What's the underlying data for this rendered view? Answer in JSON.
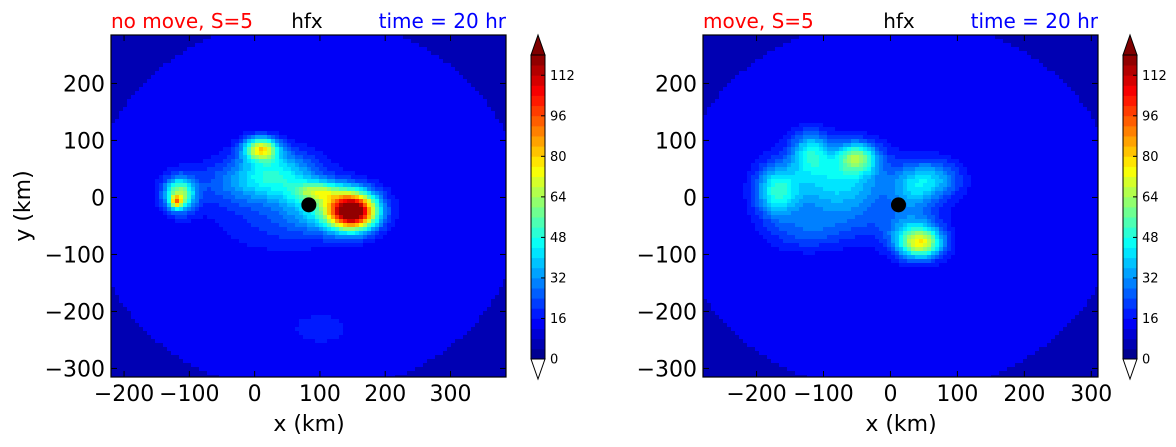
{
  "chart_data": [
    {
      "type": "heatmap",
      "variable": "hfx",
      "title_left": "no move, S=5",
      "title_center": "hfx",
      "title_right": "time = 20 hr",
      "title_left_color": "#ff0000",
      "title_center_color": "#000000",
      "title_right_color": "#0000ff",
      "xlabel": "x (km)",
      "ylabel": "y (km)",
      "xlim": [
        -220,
        385
      ],
      "ylim": [
        -315,
        285
      ],
      "xticks": [
        -200,
        -100,
        0,
        100,
        200,
        300
      ],
      "xtick_labels": [
        "−200",
        "−100",
        "0",
        "100",
        "200",
        "300"
      ],
      "yticks": [
        -300,
        -200,
        -100,
        0,
        100,
        200
      ],
      "ytick_labels": [
        "−300",
        "−200",
        "−100",
        "0",
        "100",
        "200"
      ],
      "background_level": 12,
      "outer_level": 6,
      "domain_center": [
        80,
        -15
      ],
      "domain_radius": 330,
      "center_marker": [
        83,
        -13
      ],
      "features": [
        {
          "x": 150,
          "y": -25,
          "sx": 25,
          "sy": 22,
          "amp": 105
        },
        {
          "x": 115,
          "y": -15,
          "sx": 45,
          "sy": 28,
          "amp": 30
        },
        {
          "x": 95,
          "y": 10,
          "sx": 25,
          "sy": 12,
          "amp": 30
        },
        {
          "x": 10,
          "y": 85,
          "sx": 18,
          "sy": 14,
          "amp": 58
        },
        {
          "x": 30,
          "y": 40,
          "sx": 45,
          "sy": 30,
          "amp": 32
        },
        {
          "x": -115,
          "y": 5,
          "sx": 16,
          "sy": 20,
          "amp": 50
        },
        {
          "x": -120,
          "y": -8,
          "sx": 6,
          "sy": 7,
          "amp": 40
        },
        {
          "x": -40,
          "y": 20,
          "sx": 60,
          "sy": 30,
          "amp": 10
        },
        {
          "x": 40,
          "y": -50,
          "sx": 70,
          "sy": 35,
          "amp": 8
        },
        {
          "x": 100,
          "y": -230,
          "sx": 40,
          "sy": 25,
          "amp": 6
        }
      ],
      "colorbar": {
        "min": 0,
        "max": 120,
        "levels": 30,
        "ticks": [
          0,
          16,
          32,
          48,
          64,
          80,
          96,
          112
        ],
        "extend": "both",
        "colormap": "jet"
      }
    },
    {
      "type": "heatmap",
      "variable": "hfx",
      "title_left": "move, S=5",
      "title_center": "hfx",
      "title_right": "time = 20 hr",
      "title_left_color": "#ff0000",
      "title_center_color": "#000000",
      "title_right_color": "#0000ff",
      "xlabel": "x (km)",
      "ylabel": "",
      "xlim": [
        -280,
        310
      ],
      "ylim": [
        -315,
        285
      ],
      "xticks": [
        -200,
        -100,
        0,
        100,
        200,
        300
      ],
      "xtick_labels": [
        "−200",
        "−100",
        "0",
        "100",
        "200",
        "300"
      ],
      "yticks": [
        -300,
        -200,
        -100,
        0,
        100,
        200
      ],
      "ytick_labels": [
        "−300",
        "−200",
        "−100",
        "0",
        "100",
        "200"
      ],
      "background_level": 12,
      "outer_level": 6,
      "domain_center": [
        10,
        -15
      ],
      "domain_radius": 330,
      "center_marker": [
        12,
        -13
      ],
      "features": [
        {
          "x": 45,
          "y": -80,
          "sx": 22,
          "sy": 18,
          "amp": 50
        },
        {
          "x": 35,
          "y": -60,
          "sx": 30,
          "sy": 30,
          "amp": 18
        },
        {
          "x": -50,
          "y": 70,
          "sx": 20,
          "sy": 18,
          "amp": 38
        },
        {
          "x": -80,
          "y": 30,
          "sx": 55,
          "sy": 40,
          "amp": 30
        },
        {
          "x": -170,
          "y": 10,
          "sx": 22,
          "sy": 30,
          "amp": 32
        },
        {
          "x": -120,
          "y": 80,
          "sx": 20,
          "sy": 25,
          "amp": 26
        },
        {
          "x": 60,
          "y": 30,
          "sx": 30,
          "sy": 25,
          "amp": 26
        },
        {
          "x": 30,
          "y": 10,
          "sx": 20,
          "sy": 25,
          "amp": 12
        },
        {
          "x": -130,
          "y": -60,
          "sx": 40,
          "sy": 25,
          "amp": 10
        },
        {
          "x": -60,
          "y": -40,
          "sx": 60,
          "sy": 30,
          "amp": 8
        }
      ],
      "colorbar": {
        "min": 0,
        "max": 120,
        "levels": 30,
        "ticks": [
          0,
          16,
          32,
          48,
          64,
          80,
          96,
          112
        ],
        "extend": "both",
        "colormap": "jet"
      }
    }
  ]
}
